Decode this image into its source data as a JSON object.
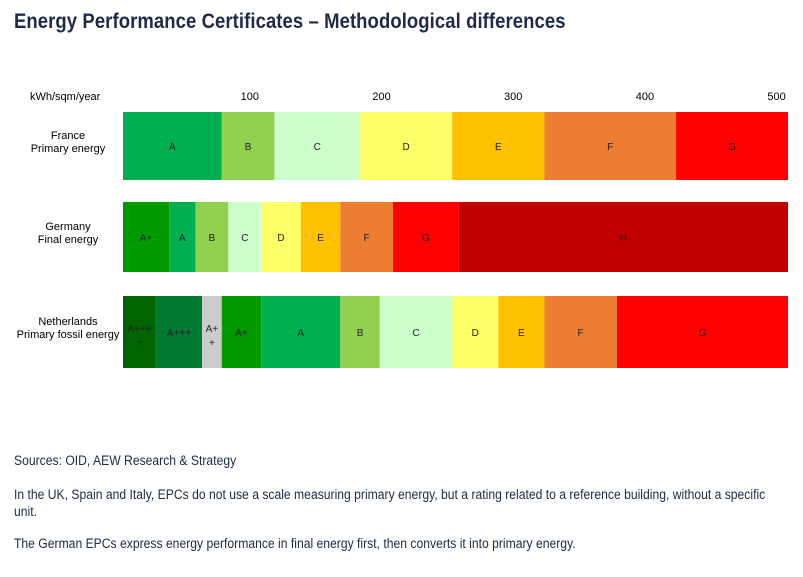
{
  "page": {
    "title": "Energy Performance Certificates – Methodological differences",
    "notes": [
      "Sources: OID, AEW Research & Strategy",
      "In the UK, Spain and Italy, EPCs do not use a scale measuring primary energy, but a rating related to a reference building, without a specific unit.",
      "The German EPCs express energy performance in final energy first, then converts it into primary energy."
    ]
  },
  "chart_data": {
    "type": "bar",
    "orientation": "horizontal-stacked-ranges",
    "xlabel": "kWh/sqm/year",
    "xlim": [
      0,
      505
    ],
    "ticks": [
      100,
      200,
      300,
      400,
      500
    ],
    "colors": {
      "A+++ +": "#006400",
      "A+++": "#007a33",
      "A++": "#008c46",
      "A+": "#009a00",
      "A": "#00b050",
      "B": "#92d050",
      "C": "#ccffcc",
      "D": "#ffff66",
      "E": "#ffc000",
      "F": "#ed7d31",
      "G": "#ff0000",
      "H": "#c00000"
    },
    "rows": [
      {
        "label": [
          "France",
          "Primary energy"
        ],
        "segments": [
          {
            "label": "A",
            "start": 0,
            "end": 75
          },
          {
            "label": "B",
            "start": 75,
            "end": 115
          },
          {
            "label": "C",
            "start": 115,
            "end": 180
          },
          {
            "label": "D",
            "start": 180,
            "end": 250
          },
          {
            "label": "E",
            "start": 250,
            "end": 320
          },
          {
            "label": "F",
            "start": 320,
            "end": 420
          },
          {
            "label": "G",
            "start": 420,
            "end": 505
          }
        ]
      },
      {
        "label": [
          "Germany",
          "Final energy"
        ],
        "segments": [
          {
            "label": "A+",
            "start": 0,
            "end": 35
          },
          {
            "label": "A",
            "start": 35,
            "end": 55
          },
          {
            "label": "B",
            "start": 55,
            "end": 80
          },
          {
            "label": "C",
            "start": 80,
            "end": 105
          },
          {
            "label": "D",
            "start": 105,
            "end": 135
          },
          {
            "label": "E",
            "start": 135,
            "end": 165
          },
          {
            "label": "F",
            "start": 165,
            "end": 205
          },
          {
            "label": "G",
            "start": 205,
            "end": 255
          },
          {
            "label": "H",
            "start": 255,
            "end": 505
          }
        ]
      },
      {
        "label": [
          "Netherlands",
          "Primary fossil energy"
        ],
        "segments": [
          {
            "label": "A+++ +",
            "start": 0,
            "end": 25
          },
          {
            "label": "A+++",
            "start": 25,
            "end": 60
          },
          {
            "label": "A+ +",
            "start": 60,
            "end": 75
          },
          {
            "label": "A+",
            "start": 75,
            "end": 105
          },
          {
            "label": "A",
            "start": 105,
            "end": 165
          },
          {
            "label": "B",
            "start": 165,
            "end": 195
          },
          {
            "label": "C",
            "start": 195,
            "end": 250
          },
          {
            "label": "D",
            "start": 250,
            "end": 285
          },
          {
            "label": "E",
            "start": 285,
            "end": 320
          },
          {
            "label": "F",
            "start": 320,
            "end": 375
          },
          {
            "label": "G",
            "start": 375,
            "end": 505
          }
        ]
      }
    ]
  }
}
